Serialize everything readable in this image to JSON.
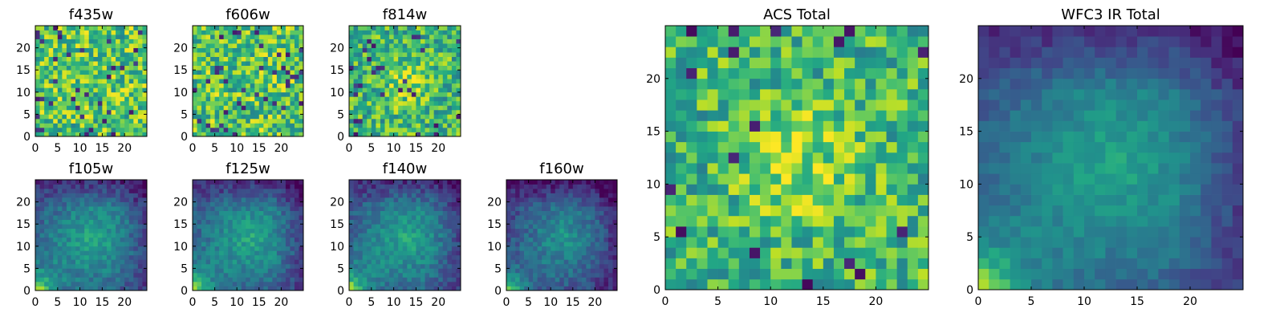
{
  "chart_data": [
    {
      "type": "heatmap",
      "title": "f435w",
      "colormap": "viridis",
      "pattern": "noisy-acs",
      "seed": 11,
      "xlim": [
        0,
        25
      ],
      "ylim": [
        0,
        25
      ],
      "xticks": [
        "0",
        "5",
        "10",
        "15",
        "20"
      ],
      "yticks": [
        "0",
        "5",
        "10",
        "15",
        "20"
      ]
    },
    {
      "type": "heatmap",
      "title": "f606w",
      "colormap": "viridis",
      "pattern": "noisy-acs",
      "seed": 23,
      "xlim": [
        0,
        25
      ],
      "ylim": [
        0,
        25
      ],
      "xticks": [
        "0",
        "5",
        "10",
        "15",
        "20"
      ],
      "yticks": [
        "0",
        "5",
        "10",
        "15",
        "20"
      ]
    },
    {
      "type": "heatmap",
      "title": "f814w",
      "colormap": "viridis",
      "pattern": "noisy-acs-center",
      "seed": 37,
      "xlim": [
        0,
        25
      ],
      "ylim": [
        0,
        25
      ],
      "xticks": [
        "0",
        "5",
        "10",
        "15",
        "20"
      ],
      "yticks": [
        "0",
        "5",
        "10",
        "15",
        "20"
      ]
    },
    {
      "type": "heatmap",
      "title": "f105w",
      "colormap": "viridis",
      "pattern": "ir",
      "seed": 41,
      "xlim": [
        0,
        25
      ],
      "ylim": [
        0,
        25
      ],
      "xticks": [
        "0",
        "5",
        "10",
        "15",
        "20"
      ],
      "yticks": [
        "0",
        "5",
        "10",
        "15",
        "20"
      ]
    },
    {
      "type": "heatmap",
      "title": "f125w",
      "colormap": "viridis",
      "pattern": "ir",
      "seed": 53,
      "xlim": [
        0,
        25
      ],
      "ylim": [
        0,
        25
      ],
      "xticks": [
        "0",
        "5",
        "10",
        "15",
        "20"
      ],
      "yticks": [
        "0",
        "5",
        "10",
        "15",
        "20"
      ]
    },
    {
      "type": "heatmap",
      "title": "f140w",
      "colormap": "viridis",
      "pattern": "ir",
      "seed": 67,
      "xlim": [
        0,
        25
      ],
      "ylim": [
        0,
        25
      ],
      "xticks": [
        "0",
        "5",
        "10",
        "15",
        "20"
      ],
      "yticks": [
        "0",
        "5",
        "10",
        "15",
        "20"
      ]
    },
    {
      "type": "heatmap",
      "title": "f160w",
      "colormap": "viridis",
      "pattern": "ir-dark",
      "seed": 79,
      "xlim": [
        0,
        25
      ],
      "ylim": [
        0,
        25
      ],
      "xticks": [
        "0",
        "5",
        "10",
        "15",
        "20"
      ],
      "yticks": [
        "0",
        "5",
        "10",
        "15",
        "20"
      ]
    },
    {
      "type": "heatmap",
      "title": "ACS Total",
      "colormap": "viridis",
      "pattern": "acs-total",
      "seed": 97,
      "xlim": [
        0,
        25
      ],
      "ylim": [
        0,
        25
      ],
      "xticks": [
        "0",
        "5",
        "10",
        "15",
        "20"
      ],
      "yticks": [
        "0",
        "5",
        "10",
        "15",
        "20"
      ]
    },
    {
      "type": "heatmap",
      "title": "WFC3 IR Total",
      "colormap": "viridis",
      "pattern": "ir-total",
      "seed": 101,
      "xlim": [
        0,
        25
      ],
      "ylim": [
        0,
        25
      ],
      "xticks": [
        "0",
        "5",
        "10",
        "15",
        "20"
      ],
      "yticks": [
        "0",
        "5",
        "10",
        "15",
        "20"
      ]
    }
  ]
}
